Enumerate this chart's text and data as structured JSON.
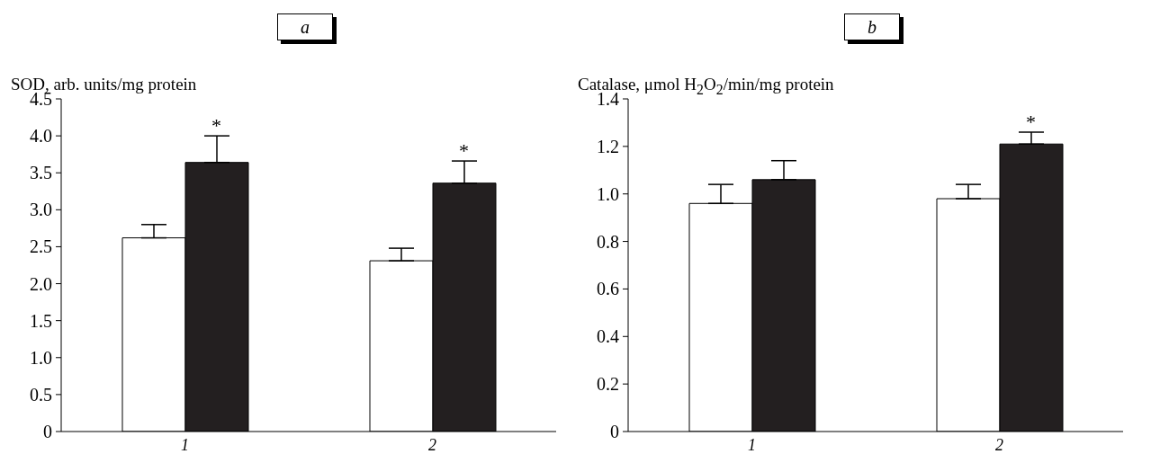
{
  "chart_data": [
    {
      "type": "bar",
      "title": "a",
      "ylabel": "SOD, arb. units/mg protein",
      "categories": [
        "1",
        "2"
      ],
      "series": [
        {
          "color": "#ffffff",
          "values": [
            2.62,
            2.31
          ],
          "errors": [
            [
              2.62,
              2.8
            ],
            [
              2.31,
              2.48
            ]
          ]
        },
        {
          "color": "#231f20",
          "values": [
            3.64,
            3.36
          ],
          "errors": [
            [
              3.64,
              4.0
            ],
            [
              3.36,
              3.66
            ]
          ]
        }
      ],
      "ylim": [
        0,
        4.5
      ],
      "yticks": [
        0,
        {
          "value": 0.5,
          "label": "0.5"
        },
        {
          "value": 1,
          "label": "1.0"
        },
        {
          "value": 1.5,
          "label": "1.5"
        },
        {
          "value": 2,
          "label": "2.0"
        },
        {
          "value": 2.5,
          "label": "2.5"
        },
        {
          "value": 3,
          "label": "3.0"
        },
        {
          "value": 3.5,
          "label": "3.5"
        },
        {
          "value": 4,
          "label": "4.0"
        },
        {
          "value": 4.5,
          "label": "4.5"
        }
      ],
      "grid": false,
      "annotations": [
        "*",
        "*"
      ]
    },
    {
      "type": "bar",
      "title": "b",
      "ylabel": "Catalase, μmol H$_{2}$O$_{2}$/min/mg protein",
      "categories": [
        "1",
        "2"
      ],
      "series": [
        {
          "color": "#ffffff",
          "values": [
            0.96,
            0.98
          ],
          "errors": [
            [
              0.96,
              1.04
            ],
            [
              0.98,
              1.04
            ]
          ]
        },
        {
          "color": "#231f20",
          "values": [
            1.06,
            1.21
          ],
          "errors": [
            [
              1.06,
              1.14
            ],
            [
              1.21,
              1.26
            ]
          ]
        }
      ],
      "ylim": [
        0,
        1.4
      ],
      "yticks": [
        0,
        {
          "value": 0.2,
          "label": "0.2"
        },
        {
          "value": 0.4,
          "label": "0.4"
        },
        {
          "value": 0.6,
          "label": "0.6"
        },
        {
          "value": 0.8,
          "label": "0.8"
        },
        {
          "value": 1,
          "label": "1.0"
        },
        {
          "value": 1.2,
          "label": "1.2"
        },
        {
          "value": 1.4,
          "label": "1.4"
        }
      ],
      "grid": false,
      "annotations": [
        "*"
      ]
    }
  ]
}
